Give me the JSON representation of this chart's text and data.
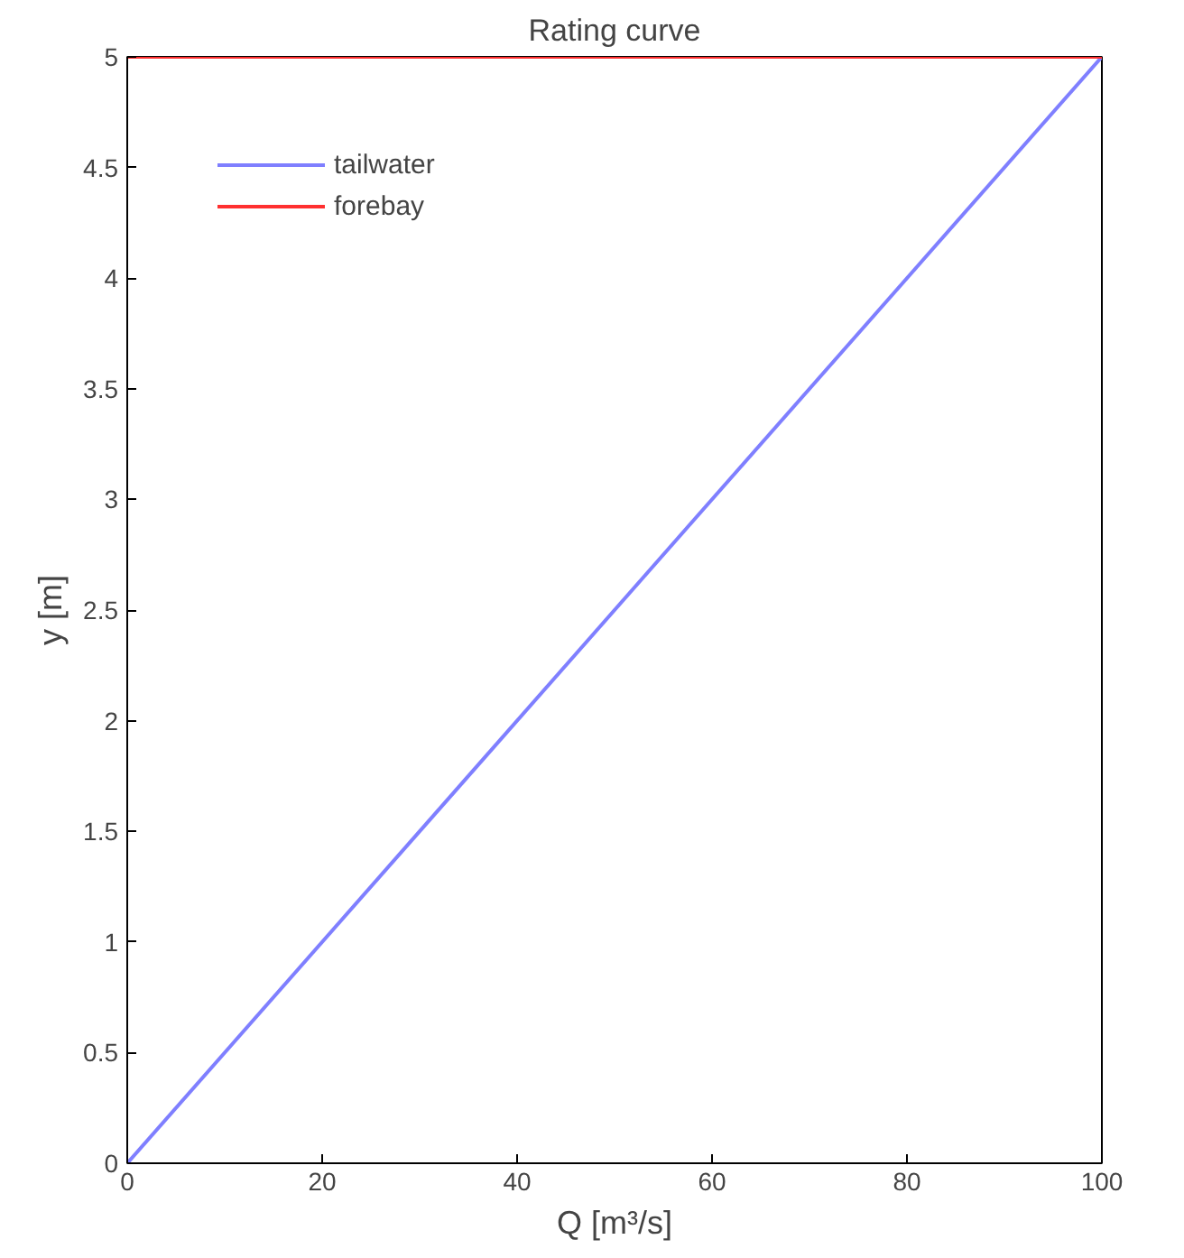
{
  "chart_data": {
    "type": "line",
    "title": "Rating curve",
    "xlabel": "Q [m³/s]",
    "ylabel": "y [m]",
    "x": [
      0,
      100
    ],
    "series": [
      {
        "name": "tailwater",
        "color": "#7f7fff",
        "values": [
          0,
          5
        ]
      },
      {
        "name": "forebay",
        "color": "#ff3030",
        "values": [
          5,
          5
        ]
      }
    ],
    "xlim": [
      0,
      100
    ],
    "ylim": [
      0,
      5
    ],
    "xticks": [
      0,
      20,
      40,
      60,
      80,
      100
    ],
    "yticks": [
      0,
      0.5,
      1,
      1.5,
      2,
      2.5,
      3,
      3.5,
      4,
      4.5,
      5
    ],
    "grid": false,
    "legend": "top left",
    "line_style": "solid",
    "marker": "none"
  }
}
